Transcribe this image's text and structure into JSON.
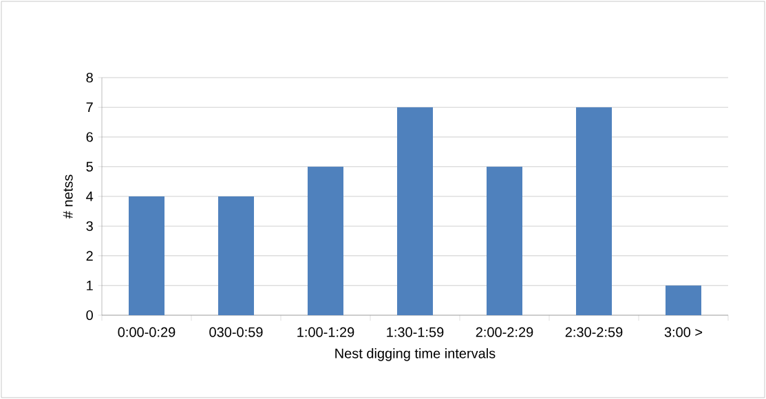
{
  "chart_data": {
    "type": "bar",
    "xlabel": "Nest digging time intervals",
    "ylabel": "# netss",
    "categories": [
      "0:00-0:29",
      "030-0:59",
      "1:00-1:29",
      "1:30-1:59",
      "2:00-2:29",
      "2:30-2:59",
      "3:00 >"
    ],
    "values": [
      4,
      4,
      5,
      7,
      5,
      7,
      1
    ],
    "color": "#4f81bd",
    "ylim": [
      0,
      8
    ],
    "yticks": [
      0,
      1,
      2,
      3,
      4,
      5,
      6,
      7,
      8
    ],
    "grid": "y"
  }
}
